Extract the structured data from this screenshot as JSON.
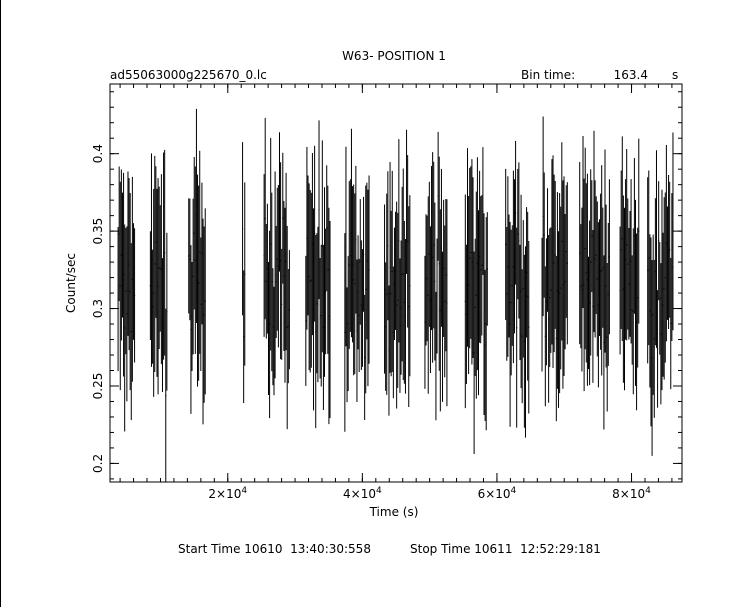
{
  "chart_data": {
    "type": "line",
    "title": "W63- POSITION 1",
    "file_label": "ad55063000g225670_0.lc",
    "bin_time_label": "Bin time:",
    "bin_time_value": "163.4",
    "bin_time_unit": "s",
    "xlabel": "Time (s)",
    "ylabel": "Count/sec",
    "xlim": [
      2500,
      87500
    ],
    "ylim": [
      0.188,
      0.445
    ],
    "x_ticks": [
      {
        "value": 20000,
        "mantissa": "2",
        "exp": "4"
      },
      {
        "value": 40000,
        "mantissa": "4",
        "exp": "4"
      },
      {
        "value": 60000,
        "mantissa": "6",
        "exp": "4"
      },
      {
        "value": 80000,
        "mantissa": "8",
        "exp": "4"
      }
    ],
    "x_minor_step": 2000,
    "y_ticks": [
      {
        "value": 0.2,
        "label": "0.2"
      },
      {
        "value": 0.25,
        "label": "0.25"
      },
      {
        "value": 0.3,
        "label": "0.3"
      },
      {
        "value": 0.35,
        "label": "0.35"
      },
      {
        "value": 0.4,
        "label": "0.4"
      }
    ],
    "y_minor_step": 0.01,
    "grid": false,
    "mean_rate": 0.315,
    "bin_time": 163.4,
    "segments": [
      {
        "start": 3700,
        "end": 6200
      },
      {
        "start": 8500,
        "end": 11000
      },
      {
        "start": 14200,
        "end": 16800
      },
      {
        "start": 22200,
        "end": 22600
      },
      {
        "start": 25400,
        "end": 29300
      },
      {
        "start": 31600,
        "end": 35200
      },
      {
        "start": 37400,
        "end": 41000
      },
      {
        "start": 43300,
        "end": 47100
      },
      {
        "start": 49300,
        "end": 52700
      },
      {
        "start": 55300,
        "end": 58600
      },
      {
        "start": 61300,
        "end": 64800
      },
      {
        "start": 66700,
        "end": 70600
      },
      {
        "start": 72300,
        "end": 76800
      },
      {
        "start": 78300,
        "end": 81200
      },
      {
        "start": 82400,
        "end": 86300
      }
    ]
  },
  "footer": {
    "start_time": "Start Time 10610  13:40:30:558",
    "stop_time": "Stop Time 10611  12:52:29:181"
  }
}
